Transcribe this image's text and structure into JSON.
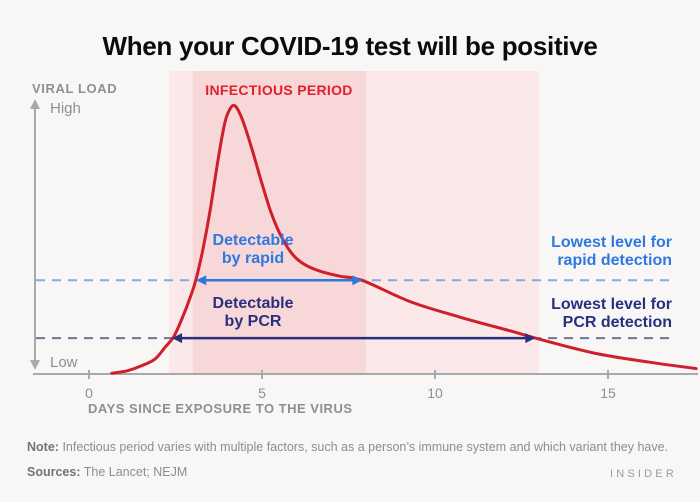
{
  "colors": {
    "background": "#f8f7f6",
    "title_color": "#0b0b0b",
    "curve_red": "#ce1f2b",
    "infectious_label_red": "#e0202a",
    "band_light": "#fbe9e9",
    "band_dark": "#f8d7d8",
    "rapid_blue": "#2d79e2",
    "rapid_dash_blue": "#7fabea",
    "pcr_navy": "#28307e",
    "pcr_dash": "#70739b",
    "axis_gray": "#a9a9ad",
    "label_gray": "#8e8f94",
    "note_gray": "#8d8d92",
    "note_strong_gray": "#737378",
    "brand_gray": "#9b9ba1"
  },
  "chart_data": {
    "type": "line",
    "title": "When your COVID-19 test will be positive",
    "x_axis": {
      "label": "DAYS SINCE EXPOSURE TO THE VIRUS",
      "ticks": [
        0,
        5,
        10,
        15
      ],
      "unit": "days",
      "range_days": [
        -1.6,
        17.6
      ],
      "grid": false
    },
    "y_axis": {
      "label": "VIRAL LOAD",
      "high_label": "High",
      "low_label": "Low",
      "scale": "qualitative low to high (0-100 relative)"
    },
    "curve": {
      "name": "viral load over time",
      "points_day_load": [
        [
          0.66,
          0.3
        ],
        [
          1.1,
          1.2
        ],
        [
          1.5,
          3.0
        ],
        [
          1.9,
          5.5
        ],
        [
          2.2,
          10.0
        ],
        [
          2.45,
          14.0
        ],
        [
          2.7,
          21.0
        ],
        [
          2.92,
          28.4
        ],
        [
          3.09,
          35.1
        ],
        [
          3.3,
          47.0
        ],
        [
          3.5,
          61.0
        ],
        [
          3.73,
          80.0
        ],
        [
          3.93,
          94.0
        ],
        [
          4.08,
          99.0
        ],
        [
          4.2,
          100.2
        ],
        [
          4.33,
          98.0
        ],
        [
          4.5,
          92.5
        ],
        [
          4.72,
          83.5
        ],
        [
          5.0,
          71.0
        ],
        [
          5.27,
          60.0
        ],
        [
          5.58,
          50.7
        ],
        [
          5.9,
          44.4
        ],
        [
          6.25,
          40.7
        ],
        [
          6.7,
          38.3
        ],
        [
          7.25,
          36.5
        ],
        [
          7.92,
          34.8
        ],
        [
          9.3,
          26.9
        ],
        [
          10.7,
          21.3
        ],
        [
          12.2,
          16.0
        ],
        [
          12.9,
          13.4
        ],
        [
          14.6,
          7.8
        ],
        [
          16.2,
          4.4
        ],
        [
          17.55,
          2.0
        ]
      ]
    },
    "bands": {
      "infectious": {
        "label": "INFECTIOUS PERIOD",
        "from_day": 3.0,
        "to_day": 8.0
      },
      "pcr_window": {
        "from_day": 2.31,
        "to_day": 13.0
      }
    },
    "thresholds": {
      "rapid": {
        "level_load": 35,
        "from_day": 3.1,
        "to_day": 7.9,
        "arrow_label_l1": "Detectable",
        "arrow_label_l2": "by rapid",
        "threshold_label_l1": "Lowest level for",
        "threshold_label_l2": "rapid detection"
      },
      "pcr": {
        "level_load": 13.4,
        "from_day": 2.4,
        "to_day": 12.9,
        "arrow_label_l1": "Detectable",
        "arrow_label_l2": "by PCR",
        "threshold_label_l1": "Lowest level for",
        "threshold_label_l2": "PCR detection"
      }
    },
    "legend": "none"
  },
  "note": {
    "prefix": "Note:",
    "text": "Infectious period varies with multiple factors, such as a person’s immune system and which variant they have."
  },
  "sources": {
    "prefix": "Sources:",
    "text": "The Lancet; NEJM"
  },
  "brand": "INSIDER"
}
